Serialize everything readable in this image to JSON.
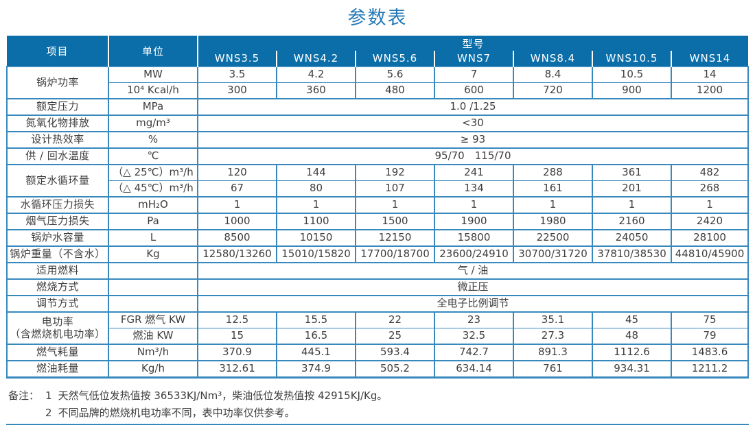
{
  "title": "参数表",
  "colors": {
    "header_bg": "#0b6ea8",
    "grid_line": "#3688bd",
    "title_text": "#2579b8",
    "body_text": "#3d3d3d"
  },
  "table": {
    "header": {
      "item": "项目",
      "unit": "单位",
      "model_group": "型号",
      "models": [
        "WNS3.5",
        "WNS4.2",
        "WNS5.6",
        "WNS7",
        "WNS8.4",
        "WNS10.5",
        "WNS14"
      ]
    },
    "rows": [
      {
        "label": "锅炉功率",
        "rowspan": 2,
        "divider": "thin",
        "unit": "MW",
        "values": [
          "3.5",
          "4.2",
          "5.6",
          "7",
          "8.4",
          "10.5",
          "14"
        ]
      },
      {
        "unit": "10⁴ Kcal/h",
        "values": [
          "300",
          "360",
          "480",
          "600",
          "720",
          "900",
          "1200"
        ]
      },
      {
        "label": "额定压力",
        "unit": "MPa",
        "merged": "1.0 /1.25"
      },
      {
        "label": "氮氧化物排放",
        "unit": "mg/m³",
        "merged": "<30"
      },
      {
        "label": "设计热效率",
        "unit": "%",
        "merged": "≥ 93"
      },
      {
        "label": "供 / 回水温度",
        "unit": "℃",
        "merged": "95/70　115/70"
      },
      {
        "label": "额定水循环量",
        "rowspan": 2,
        "divider": "thin",
        "unit": "（△ 25℃）m³/h",
        "values": [
          "120",
          "144",
          "192",
          "241",
          "288",
          "361",
          "482"
        ]
      },
      {
        "unit": "（△ 45℃）m³/h",
        "values": [
          "67",
          "80",
          "107",
          "134",
          "161",
          "201",
          "268"
        ]
      },
      {
        "label": "水循环压力损失",
        "unit": "mH₂O",
        "values": [
          "1",
          "1",
          "1",
          "1",
          "1",
          "1",
          "1"
        ]
      },
      {
        "label": "烟气压力损失",
        "unit": "Pa",
        "values": [
          "1000",
          "1100",
          "1500",
          "1900",
          "1980",
          "2160",
          "2420"
        ]
      },
      {
        "label": "锅炉水容量",
        "unit": "L",
        "values": [
          "8500",
          "10150",
          "12150",
          "15800",
          "22500",
          "24050",
          "28100"
        ]
      },
      {
        "label": "锅炉重量（不含水）",
        "unit": "Kg",
        "values": [
          "12580/13260",
          "15010/15820",
          "17700/18700",
          "23600/24910",
          "30700/31720",
          "37810/38530",
          "44810/45900"
        ]
      },
      {
        "label": "适用燃料",
        "unit": "",
        "merged": "气 / 油"
      },
      {
        "label": "燃烧方式",
        "unit": "",
        "merged": "微正压"
      },
      {
        "label": "调节方式",
        "unit": "",
        "merged": "全电子比例调节"
      },
      {
        "label": "电功率",
        "label2": "（含燃烧机电功率）",
        "rowspan": 2,
        "divider": "thin",
        "unit": "FGR 燃气 KW",
        "values": [
          "12.5",
          "15.5",
          "22",
          "23",
          "35.1",
          "45",
          "75"
        ]
      },
      {
        "unit": "燃油 KW",
        "values": [
          "15",
          "16.5",
          "25",
          "32.5",
          "27.3",
          "48",
          "79"
        ]
      },
      {
        "label": "燃气耗量",
        "unit": "Nm³/h",
        "values": [
          "370.9",
          "445.1",
          "593.4",
          "742.7",
          "891.3",
          "1112.6",
          "1483.6"
        ]
      },
      {
        "label": "燃油耗量",
        "unit": "Kg/h",
        "values": [
          "312.61",
          "374.9",
          "505.2",
          "634.14",
          "761",
          "934.31",
          "1211.2"
        ]
      }
    ]
  },
  "notes": {
    "label": "备注：",
    "items": [
      {
        "num": "1",
        "text": "天然气低位发热值按 36533KJ/Nm³，柴油低位发热值按 42915KJ/Kg。"
      },
      {
        "num": "2",
        "text": "不同品牌的燃烧机电功率不同，表中功率仅供参考。"
      }
    ]
  }
}
